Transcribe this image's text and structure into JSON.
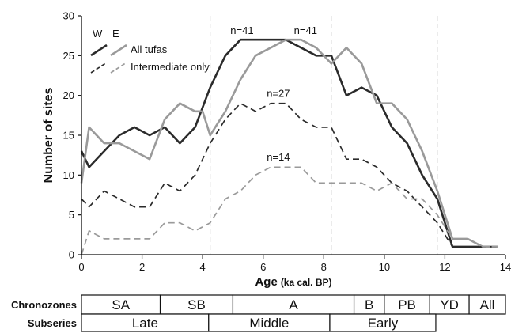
{
  "chart_data": {
    "type": "line",
    "xlabel": "Age",
    "xlabel_unit": "(ka cal. BP)",
    "ylabel": "Number of sites",
    "xlim": [
      0,
      14
    ],
    "ylim": [
      0,
      30
    ],
    "x_ticks": [
      0,
      2,
      4,
      6,
      8,
      10,
      12,
      14
    ],
    "y_ticks": [
      0,
      5,
      10,
      15,
      20,
      25,
      30
    ],
    "grid": false,
    "vertical_reference_lines": [
      4.25,
      8.25,
      11.75
    ],
    "legend": {
      "placement": "top-left",
      "header_w": "W",
      "header_e": "E",
      "entries": [
        "All tufas",
        "Intermediate only"
      ]
    },
    "colors": {
      "west": "#2b2b2b",
      "east": "#9a9a9a",
      "reference_line": "#c8c8c8"
    },
    "annotations": [
      {
        "text": "n=41",
        "x": 5.3,
        "y": 27.7,
        "series": "all_w"
      },
      {
        "text": "n=41",
        "x": 7.4,
        "y": 27.7,
        "series": "all_e"
      },
      {
        "text": "n=27",
        "x": 6.5,
        "y": 19.8,
        "series": "int_w"
      },
      {
        "text": "n=14",
        "x": 6.5,
        "y": 11.8,
        "series": "int_e"
      }
    ],
    "series": [
      {
        "key": "all_w",
        "name": "All tufas",
        "region": "W",
        "style": "solid",
        "x": [
          0,
          0.25,
          0.75,
          1.25,
          1.75,
          2.25,
          2.75,
          3.25,
          3.75,
          4.25,
          4.75,
          5.25,
          5.75,
          6.25,
          6.75,
          7.25,
          7.75,
          8.25,
          8.75,
          9.25,
          9.75,
          10.25,
          10.75,
          11.25,
          11.75,
          12.25,
          12.75,
          13.25,
          13.75
        ],
        "y": [
          13,
          11,
          13,
          15,
          16,
          15,
          16,
          14,
          16,
          21,
          25,
          27,
          27,
          27,
          27,
          26,
          25,
          25,
          20,
          21,
          20,
          16,
          14,
          10,
          7,
          1,
          1,
          1,
          1
        ]
      },
      {
        "key": "all_e",
        "name": "All tufas",
        "region": "E",
        "style": "solid",
        "x": [
          0,
          0.25,
          0.75,
          1.25,
          1.75,
          2.25,
          2.75,
          3.25,
          3.75,
          4.0,
          4.25,
          4.75,
          5.25,
          5.75,
          6.25,
          6.75,
          7.25,
          7.75,
          8.25,
          8.75,
          9.25,
          9.75,
          10.25,
          10.75,
          11.25,
          11.75,
          12.25,
          12.75,
          13.25,
          13.75
        ],
        "y": [
          9,
          16,
          14,
          14,
          13,
          12,
          17,
          19,
          18,
          18,
          15,
          18,
          22,
          25,
          26,
          27,
          27,
          26,
          24,
          26,
          24,
          19,
          19,
          17,
          13,
          8,
          2,
          2,
          1,
          1
        ]
      },
      {
        "key": "int_w",
        "name": "Intermediate only",
        "region": "W",
        "style": "dashed",
        "x": [
          0,
          0.25,
          0.75,
          1.25,
          1.75,
          2.25,
          2.75,
          3.25,
          3.75,
          4.25,
          4.75,
          5.25,
          5.75,
          6.25,
          6.75,
          7.25,
          7.75,
          8.25,
          8.75,
          9.25,
          9.75,
          10.25,
          10.75,
          11.25,
          11.75,
          12.25,
          12.75,
          13.25,
          13.75
        ],
        "y": [
          7,
          6,
          8,
          7,
          6,
          6,
          9,
          8,
          10,
          14,
          17,
          19,
          18,
          19,
          19,
          17,
          16,
          16,
          12,
          12,
          11,
          9,
          8,
          6,
          4,
          1,
          1,
          1,
          1
        ]
      },
      {
        "key": "int_e",
        "name": "Intermediate only",
        "region": "E",
        "style": "dashed",
        "x": [
          0,
          0.25,
          0.75,
          1.25,
          1.75,
          2.25,
          2.75,
          3.25,
          3.75,
          4.25,
          4.75,
          5.25,
          5.75,
          6.25,
          6.75,
          7.25,
          7.75,
          8.25,
          8.75,
          9.25,
          9.75,
          10.25,
          10.75,
          11.25,
          11.75,
          12.25,
          12.75,
          13.25,
          13.75
        ],
        "y": [
          0,
          3,
          2,
          2,
          2,
          2,
          4,
          4,
          3,
          4,
          7,
          8,
          10,
          11,
          11,
          11,
          9,
          9,
          9,
          9,
          8,
          9,
          7,
          7,
          5,
          2,
          2,
          1,
          1
        ]
      }
    ]
  },
  "chronozones": {
    "label": "Chronozones",
    "segments": [
      {
        "name": "SA",
        "start": 0,
        "end": 2.6
      },
      {
        "name": "SB",
        "start": 2.6,
        "end": 5.0
      },
      {
        "name": "A",
        "start": 5.0,
        "end": 9.0
      },
      {
        "name": "B",
        "start": 9.0,
        "end": 10.0
      },
      {
        "name": "PB",
        "start": 10.0,
        "end": 11.5
      },
      {
        "name": "YD",
        "start": 11.5,
        "end": 12.8
      },
      {
        "name": "All",
        "start": 12.8,
        "end": 14.0
      }
    ]
  },
  "subseries": {
    "label": "Subseries",
    "segments": [
      {
        "name": "Late",
        "start": 0,
        "end": 4.2
      },
      {
        "name": "Middle",
        "start": 4.2,
        "end": 8.2
      },
      {
        "name": "Early",
        "start": 8.2,
        "end": 11.7
      }
    ]
  }
}
